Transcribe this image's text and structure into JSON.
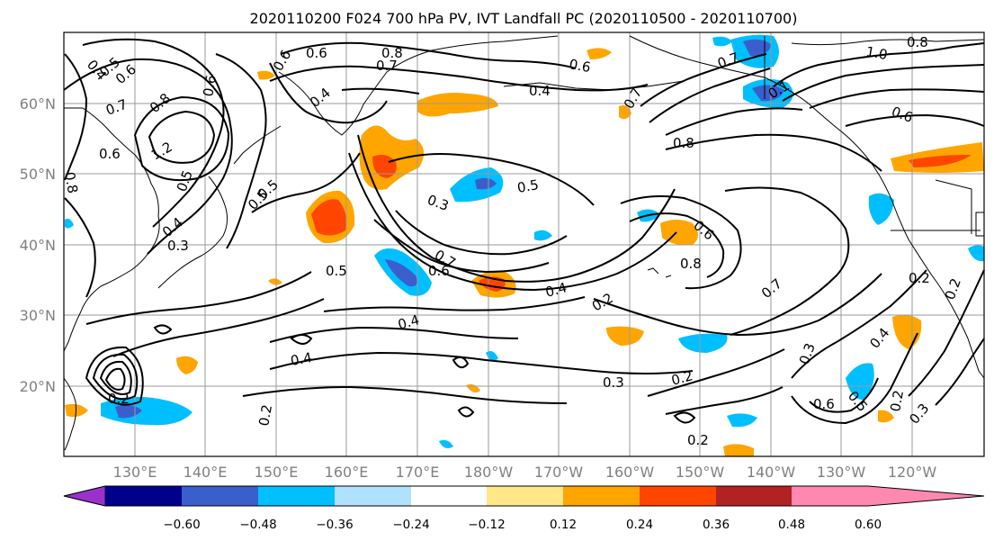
{
  "title": "2020110200 F024 700 hPa PV, IVT Landfall PC (2020110500 - 2020110700)",
  "axes": {
    "lat_labels": [
      "60°N",
      "50°N",
      "40°N",
      "30°N",
      "20°N"
    ],
    "lon_labels": [
      "130°E",
      "140°E",
      "150°E",
      "160°E",
      "170°E",
      "180°W",
      "170°W",
      "160°W",
      "150°W",
      "140°W",
      "130°W",
      "120°W"
    ]
  },
  "colorbar": {
    "ticks": [
      "−0.60",
      "−0.48",
      "−0.36",
      "−0.24",
      "−0.12",
      "0.12",
      "0.24",
      "0.36",
      "0.48",
      "0.60"
    ],
    "colors": [
      "#9932cc",
      "#00008b",
      "#3a5fcd",
      "#00bfff",
      "#b0e2ff",
      "#ffffff",
      "#ffe78a",
      "#ffa500",
      "#ff4500",
      "#b22222",
      "#ff88b0"
    ]
  },
  "contour_labels": [
    "0.4",
    "0.5",
    "0.6",
    "0.7",
    "0.6",
    "0.8",
    "0.7",
    "0.6",
    "0.4",
    "0.3",
    "0.5",
    "0.5",
    "0.5",
    "0.7",
    "0.8",
    "1.0",
    "0.8",
    "0.6",
    "0.1",
    "0.6",
    "0.8",
    "1.2",
    "0.6",
    "0.8",
    "0.4",
    "0.5",
    "0.5",
    "0.6",
    "0.7",
    "0.6",
    "0.4",
    "0.8",
    "0.2",
    "0.7",
    "0.4",
    "0.4",
    "0.3",
    "0.2",
    "0.2",
    "0.2",
    "0.6",
    "0.5",
    "0.4",
    "0.3",
    "0.2",
    "0.3",
    "0.2",
    "0.2",
    "0.2",
    "0.3",
    "0.6",
    "0.7",
    "0.4"
  ]
}
